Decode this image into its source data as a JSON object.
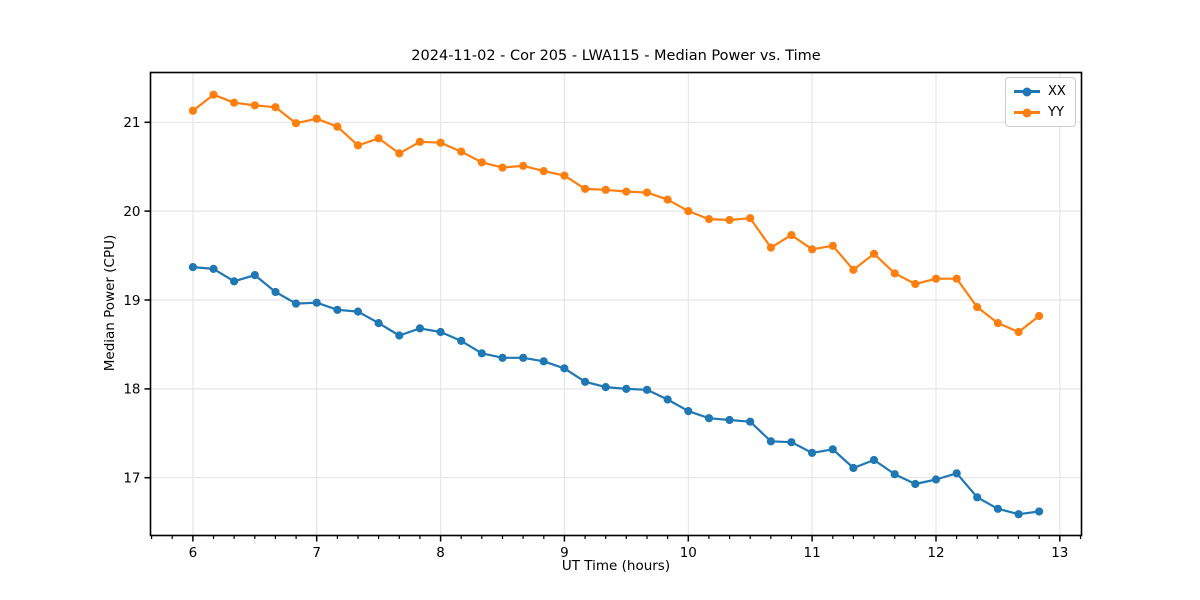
{
  "chart_data": {
    "type": "line",
    "title": "2024-11-02 - Cor 205 - LWA115 - Median Power vs. Time",
    "xlabel": "UT Time (hours)",
    "ylabel": "Median Power (CPU)",
    "xlim": [
      5.658,
      13.175
    ],
    "ylim": [
      16.35,
      21.56
    ],
    "xticks": [
      6,
      7,
      8,
      9,
      10,
      11,
      12,
      13
    ],
    "yticks": [
      17,
      18,
      19,
      20,
      21
    ],
    "minor_ticks_per_hour": 6,
    "grid": true,
    "grid_color": "#e6e6e6",
    "spine_color": "#000000",
    "background": "#ffffff",
    "legend_position": "upper right",
    "x": [
      6.0,
      6.167,
      6.333,
      6.5,
      6.667,
      6.833,
      7.0,
      7.167,
      7.333,
      7.5,
      7.667,
      7.833,
      8.0,
      8.167,
      8.333,
      8.5,
      8.667,
      8.833,
      9.0,
      9.167,
      9.333,
      9.5,
      9.667,
      9.833,
      10.0,
      10.167,
      10.333,
      10.5,
      10.667,
      10.833,
      11.0,
      11.167,
      11.333,
      11.5,
      11.667,
      11.833,
      12.0,
      12.167,
      12.333,
      12.5,
      12.667,
      12.833
    ],
    "series": [
      {
        "name": "XX",
        "color": "#1f77b4",
        "values": [
          19.37,
          19.35,
          19.21,
          19.28,
          19.09,
          18.96,
          18.97,
          18.89,
          18.87,
          18.74,
          18.6,
          18.68,
          18.64,
          18.54,
          18.4,
          18.35,
          18.35,
          18.31,
          18.23,
          18.08,
          18.02,
          18.0,
          17.99,
          17.88,
          17.75,
          17.67,
          17.65,
          17.63,
          17.41,
          17.4,
          17.28,
          17.32,
          17.11,
          17.2,
          17.04,
          16.93,
          16.98,
          17.05,
          16.78,
          16.65,
          16.59,
          16.62
        ]
      },
      {
        "name": "YY",
        "color": "#ff7f0e",
        "values": [
          21.13,
          21.31,
          21.22,
          21.19,
          21.17,
          20.99,
          21.04,
          20.95,
          20.74,
          20.82,
          20.65,
          20.78,
          20.77,
          20.67,
          20.55,
          20.49,
          20.51,
          20.45,
          20.4,
          20.25,
          20.24,
          20.22,
          20.21,
          20.13,
          20.0,
          19.91,
          19.9,
          19.92,
          19.59,
          19.73,
          19.57,
          19.61,
          19.34,
          19.52,
          19.3,
          19.18,
          19.24,
          19.24,
          18.92,
          18.74,
          18.64,
          18.82
        ]
      }
    ]
  }
}
